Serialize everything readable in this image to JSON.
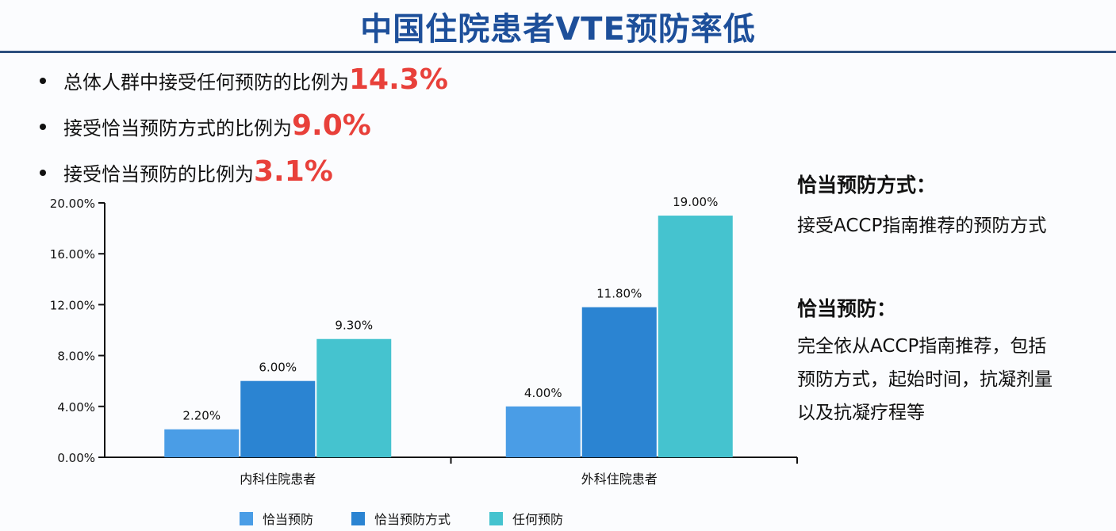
{
  "title": "中国住院患者VTE预防率低",
  "bullets": [
    {
      "text": "总体人群中接受任何预防的比例为",
      "highlight": "14.3%"
    },
    {
      "text": "接受恰当预防方式的比例为",
      "highlight": "9.0%"
    },
    {
      "text": "接受恰当预防的比例为",
      "highlight": "3.1%"
    }
  ],
  "side": {
    "def1_title": "恰当预防方式：",
    "def1_text": "接受ACCP指南推荐的预防方式",
    "def2_title": "恰当预防：",
    "def2_text": "完全依从ACCP指南推荐，包括\n预防方式，起始时间，抗凝剂量\n以及抗凝疗程等"
  },
  "chart_data": {
    "type": "bar",
    "categories": [
      "内科住院患者",
      "外科住院患者"
    ],
    "series": [
      {
        "name": "恰当预防",
        "values": [
          2.2,
          4.0
        ],
        "labels": [
          "2.20%",
          "4.00%"
        ],
        "color": "#4a9de6"
      },
      {
        "name": "恰当预防方式",
        "values": [
          6.0,
          11.8
        ],
        "labels": [
          "6.00%",
          "11.80%"
        ],
        "color": "#2b84d2"
      },
      {
        "name": "任何预防",
        "values": [
          9.3,
          19.0
        ],
        "labels": [
          "9.30%",
          "19.00%"
        ],
        "color": "#45c3cf"
      }
    ],
    "ylim": [
      0,
      20
    ],
    "yticks": [
      "0.00%",
      "4.00%",
      "8.00%",
      "12.00%",
      "16.00%",
      "20.00%"
    ],
    "grid": false,
    "legend": "bottom"
  }
}
